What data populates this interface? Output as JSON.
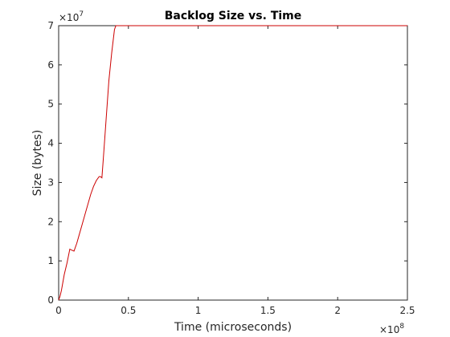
{
  "chart_data": {
    "type": "line",
    "title": "Backlog Size vs. Time",
    "xlabel": "Time (microseconds)",
    "ylabel": "Size (bytes)",
    "x_exponent_base": "×10",
    "x_exponent_power": "8",
    "y_exponent_base": "×10",
    "y_exponent_power": "7",
    "xlim": [
      0,
      2.5
    ],
    "ylim": [
      0,
      7
    ],
    "x_ticks": [
      0,
      0.5,
      1,
      1.5,
      2,
      2.5
    ],
    "x_tick_labels": [
      "0",
      "0.5",
      "1",
      "1.5",
      "2",
      "2.5"
    ],
    "y_ticks": [
      0,
      1,
      2,
      3,
      4,
      5,
      6,
      7
    ],
    "y_tick_labels": [
      "0",
      "1",
      "2",
      "3",
      "4",
      "5",
      "6",
      "7"
    ],
    "grid": false,
    "legend": "none",
    "series": [
      {
        "color": "#cc0000",
        "x": [
          0.0,
          0.01,
          0.02,
          0.03,
          0.04,
          0.06,
          0.08,
          0.09,
          0.11,
          0.13,
          0.15,
          0.17,
          0.19,
          0.21,
          0.23,
          0.25,
          0.27,
          0.29,
          0.3,
          0.31,
          0.32,
          0.34,
          0.36,
          0.38,
          0.4,
          0.41,
          0.42,
          0.6,
          0.8,
          1.0,
          1.2,
          1.4,
          1.6,
          1.8,
          2.0,
          2.2,
          2.4,
          2.5
        ],
        "y": [
          0.0,
          0.1,
          0.25,
          0.45,
          0.65,
          0.95,
          1.3,
          1.28,
          1.25,
          1.45,
          1.7,
          1.95,
          2.2,
          2.45,
          2.7,
          2.9,
          3.05,
          3.15,
          3.15,
          3.12,
          3.6,
          4.6,
          5.6,
          6.3,
          6.9,
          7.0,
          7.0,
          7.0,
          7.0,
          7.0,
          7.0,
          7.0,
          7.0,
          7.0,
          7.0,
          7.0,
          7.0,
          7.0
        ]
      }
    ]
  }
}
